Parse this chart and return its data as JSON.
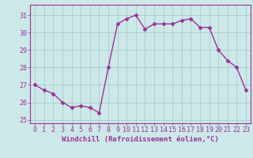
{
  "x": [
    0,
    1,
    2,
    3,
    4,
    5,
    6,
    7,
    8,
    9,
    10,
    11,
    12,
    13,
    14,
    15,
    16,
    17,
    18,
    19,
    20,
    21,
    22,
    23
  ],
  "y": [
    27.0,
    26.7,
    26.5,
    26.0,
    25.7,
    25.8,
    25.7,
    25.4,
    28.0,
    30.5,
    30.8,
    31.0,
    30.2,
    30.5,
    30.5,
    30.5,
    30.7,
    30.8,
    30.3,
    30.3,
    29.0,
    28.4,
    28.0,
    26.7
  ],
  "line_color": "#993399",
  "marker": "D",
  "marker_size": 2.5,
  "bg_color": "#cce8e8",
  "grid_color": "#aacccc",
  "xlabel": "Windchill (Refroidissement éolien,°C)",
  "xlabel_fontsize": 6.5,
  "xlim": [
    -0.5,
    23.5
  ],
  "ylim": [
    24.8,
    31.6
  ],
  "yticks": [
    25,
    26,
    27,
    28,
    29,
    30,
    31
  ],
  "xticks": [
    0,
    1,
    2,
    3,
    4,
    5,
    6,
    7,
    8,
    9,
    10,
    11,
    12,
    13,
    14,
    15,
    16,
    17,
    18,
    19,
    20,
    21,
    22,
    23
  ],
  "tick_fontsize": 6.0,
  "linewidth": 1.0
}
